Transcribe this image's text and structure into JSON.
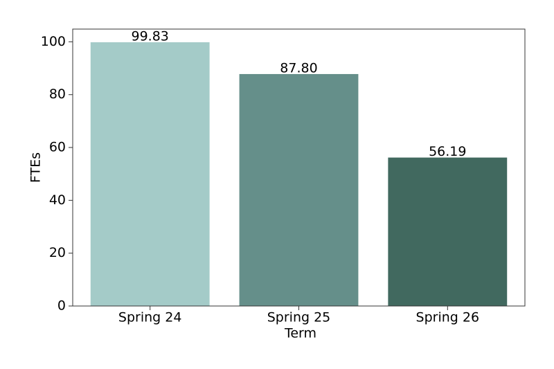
{
  "chart_data": {
    "type": "bar",
    "x_label": "Term",
    "y_label": "FTEs",
    "categories": [
      "Spring 24",
      "Spring 25",
      "Spring 26"
    ],
    "values": [
      99.83,
      87.8,
      56.19
    ],
    "value_labels": [
      "99.83",
      "87.80",
      "56.19"
    ],
    "colors": [
      "#a4cbc8",
      "#658f8a",
      "#41695f"
    ],
    "ylim": [
      0,
      104.82
    ],
    "yticks": [
      0,
      20,
      40,
      60,
      80,
      100
    ],
    "grid": false
  }
}
